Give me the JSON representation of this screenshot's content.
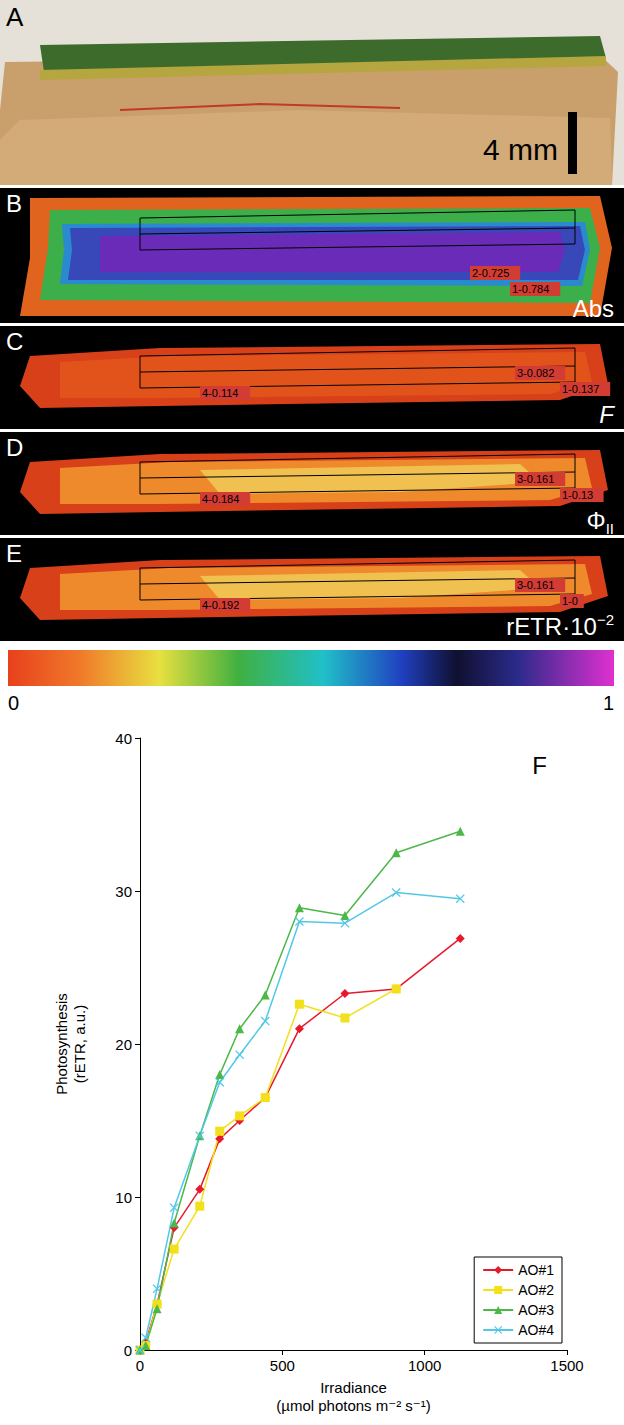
{
  "panels": [
    {
      "letter": "A",
      "scale_bar": "4 mm"
    },
    {
      "letter": "B",
      "label": "Abs",
      "rois": [
        "2-0.725",
        "1-0.784"
      ]
    },
    {
      "letter": "C",
      "label": "F",
      "rois": [
        "3-0.082",
        "1-0.137",
        "4-0.114"
      ]
    },
    {
      "letter": "D",
      "label": "Φ",
      "label_sub": "II",
      "rois": [
        "3-0.161",
        "1-0.13",
        "4-0.184"
      ]
    },
    {
      "letter": "E",
      "label": "rETR·10",
      "label_sup": "−2",
      "rois": [
        "3-0.161",
        "1-0",
        "4-0.192"
      ]
    }
  ],
  "colorbar": {
    "range": [
      0,
      1
    ],
    "ticks": [
      0,
      1
    ]
  },
  "chart_data": {
    "type": "line",
    "panel": "F",
    "x_label": "Irradiance\n(µmol photons m⁻² s⁻¹)",
    "y_label": "Photosynthesis\n(rETR, a.u.)",
    "x": [
      0,
      20,
      60,
      120,
      210,
      280,
      350,
      440,
      560,
      720,
      900,
      1125
    ],
    "series": [
      {
        "name": "AO#1",
        "color": "#e8192c",
        "marker": "diamond",
        "values": [
          0,
          0.5,
          3,
          8,
          10.5,
          13.8,
          15,
          16.5,
          21,
          23.3,
          23.6,
          26.9
        ]
      },
      {
        "name": "AO#2",
        "color": "#f2e01a",
        "marker": "square",
        "values": [
          0,
          0.3,
          3,
          6.6,
          9.4,
          14.3,
          15.3,
          16.5,
          22.6,
          21.7,
          23.6,
          null
        ]
      },
      {
        "name": "AO#3",
        "color": "#4cb848",
        "marker": "triangle",
        "values": [
          0,
          0.3,
          2.7,
          8.3,
          14,
          18,
          21,
          23.2,
          28.9,
          28.4,
          32.5,
          33.9
        ]
      },
      {
        "name": "AO#4",
        "color": "#52c8e8",
        "marker": "x",
        "values": [
          0,
          0.8,
          4,
          9.3,
          14,
          17.5,
          19.3,
          21.5,
          28,
          27.9,
          29.9,
          29.5
        ]
      }
    ],
    "xlim": [
      0,
      1500
    ],
    "xticks": [
      0,
      500,
      1000,
      1500
    ],
    "ylim": [
      0,
      40
    ],
    "yticks": [
      0,
      10,
      20,
      30,
      40
    ],
    "grid": false,
    "legend": "lower right"
  }
}
